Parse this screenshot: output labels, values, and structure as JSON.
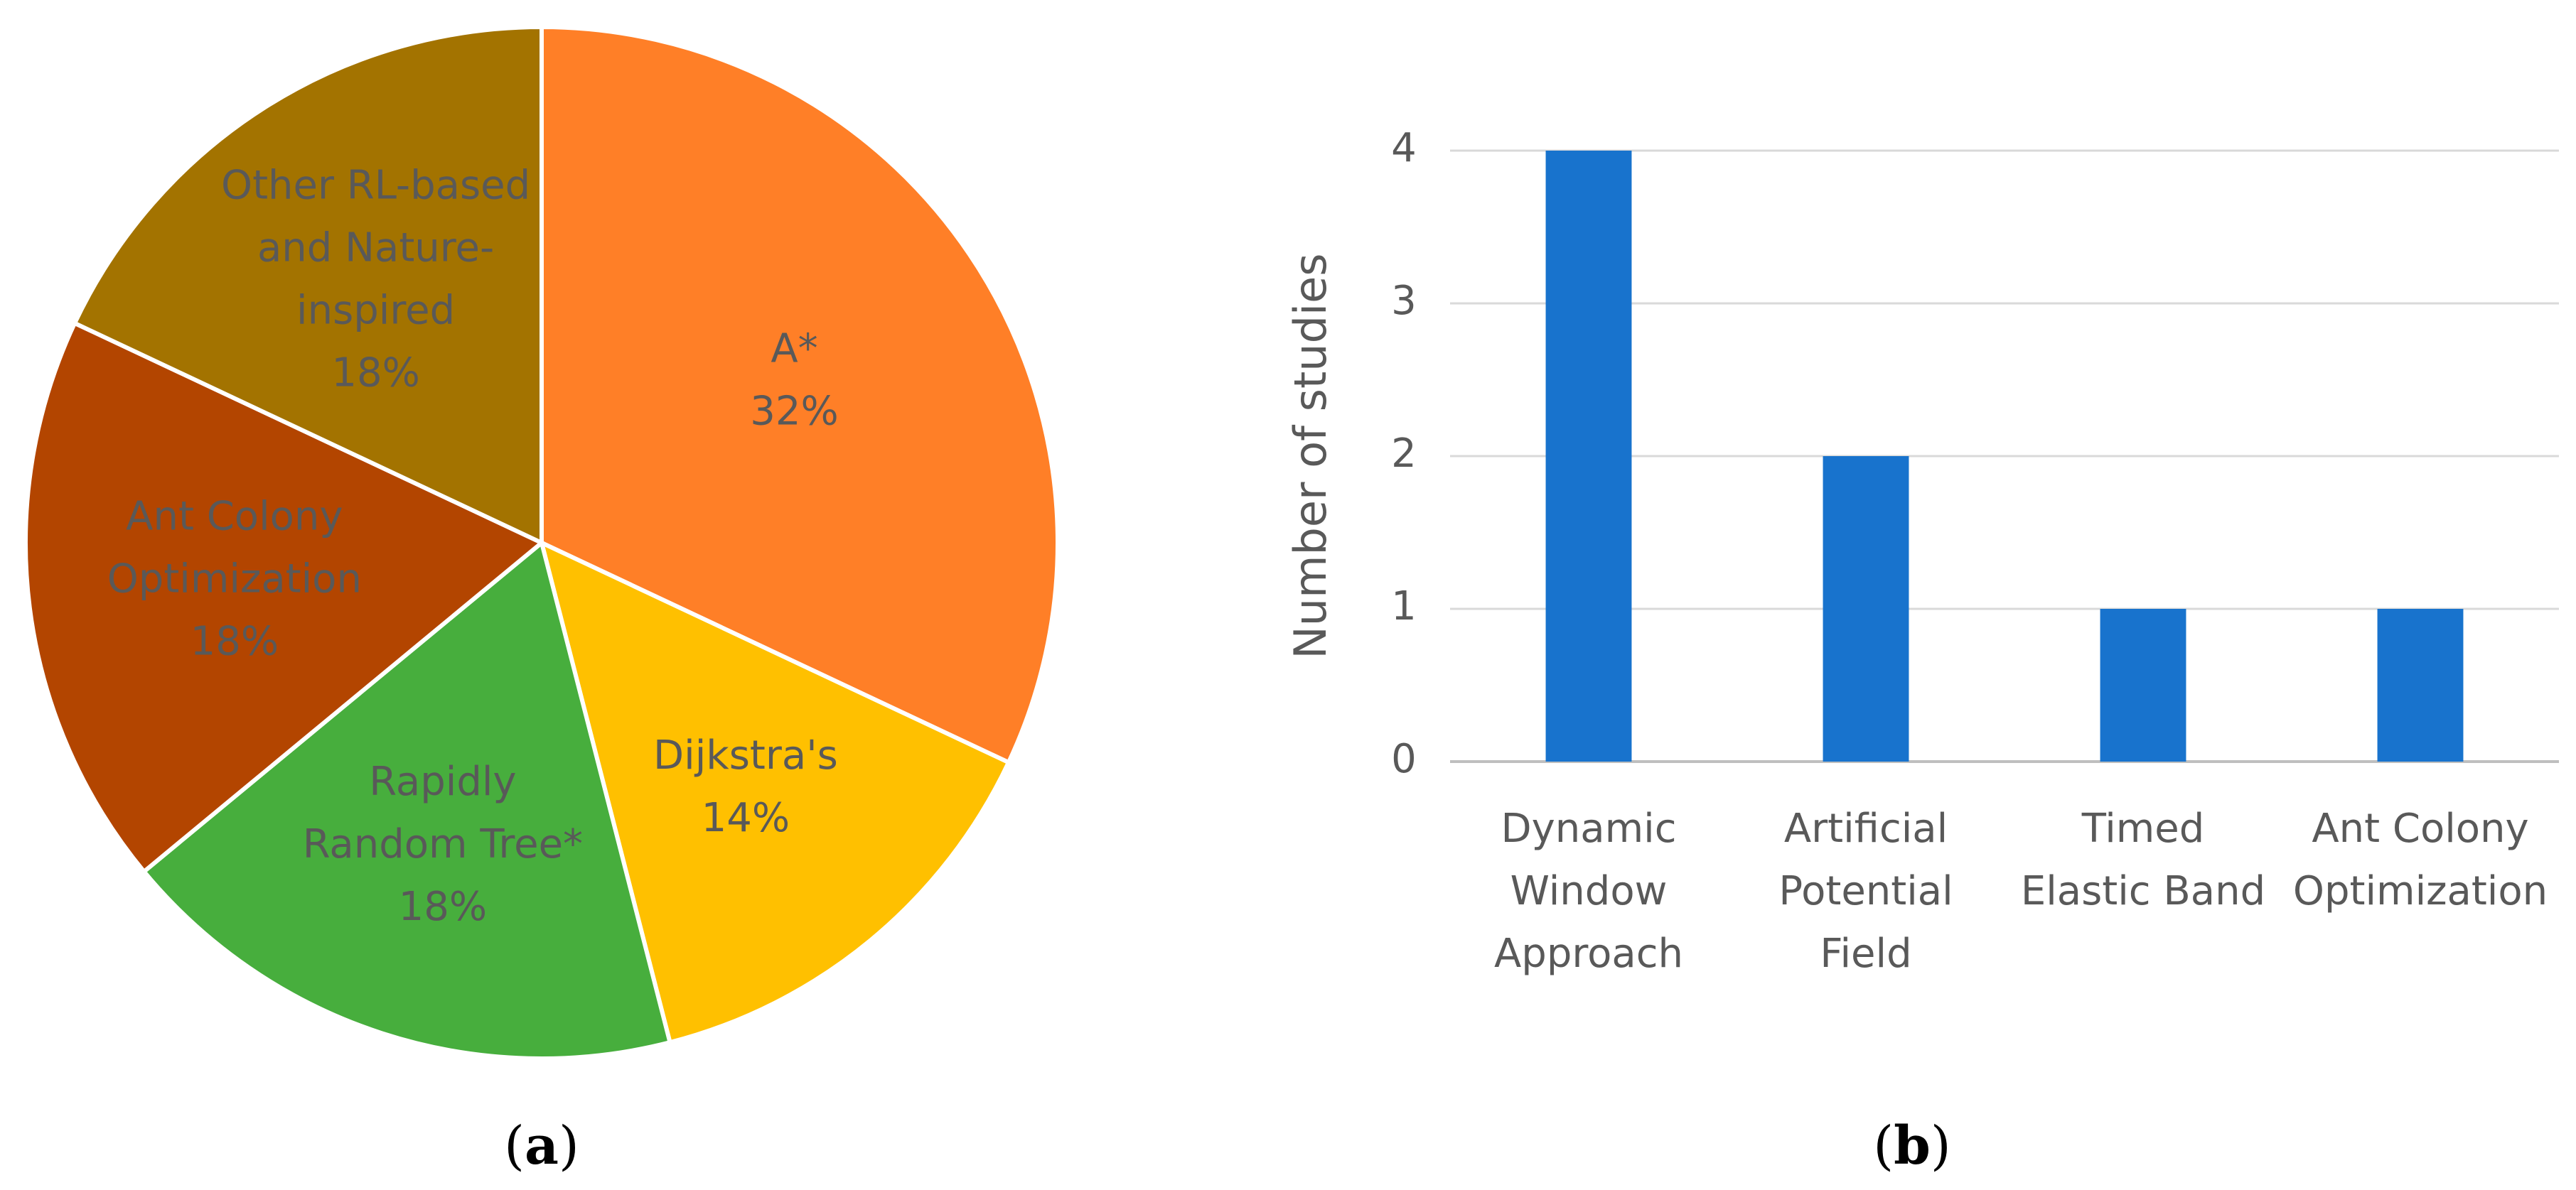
{
  "chart_data": [
    {
      "type": "pie",
      "slices": [
        {
          "label_lines": [
            "A*"
          ],
          "value": 32,
          "value_label": "32%",
          "color": "#FF7F27"
        },
        {
          "label_lines": [
            "Dijkstra's"
          ],
          "value": 14,
          "value_label": "14%",
          "color": "#FFC000"
        },
        {
          "label_lines": [
            "Rapidly",
            "Random Tree*"
          ],
          "value": 18,
          "value_label": "18%",
          "color": "#47AE3D"
        },
        {
          "label_lines": [
            "Ant Colony",
            "Optimization"
          ],
          "value": 18,
          "value_label": "18%",
          "color": "#B34500"
        },
        {
          "label_lines": [
            "Other RL-based",
            "and Nature-",
            "inspired"
          ],
          "value": 18,
          "value_label": "18%",
          "color": "#A37300"
        }
      ],
      "start": "12 o'clock",
      "direction": "clockwise",
      "caption": "a"
    },
    {
      "type": "bar",
      "categories": [
        [
          "Dynamic",
          "Window",
          "Approach"
        ],
        [
          "Artificial",
          "Potential",
          "Field"
        ],
        [
          "Timed",
          "Elastic Band"
        ],
        [
          "Ant Colony",
          "Optimization"
        ]
      ],
      "values": [
        4,
        2,
        1,
        1
      ],
      "ylabel": "Number of studies",
      "yticks": [
        "0",
        "1",
        "2",
        "3",
        "4"
      ],
      "ylim": [
        0,
        4
      ],
      "grid": true,
      "bar_color": "#1873CD",
      "caption": "b"
    }
  ],
  "captions": {
    "a": {
      "open": "(",
      "letter": "a",
      "close": ")"
    },
    "b": {
      "open": "(",
      "letter": "b",
      "close": ")"
    }
  }
}
